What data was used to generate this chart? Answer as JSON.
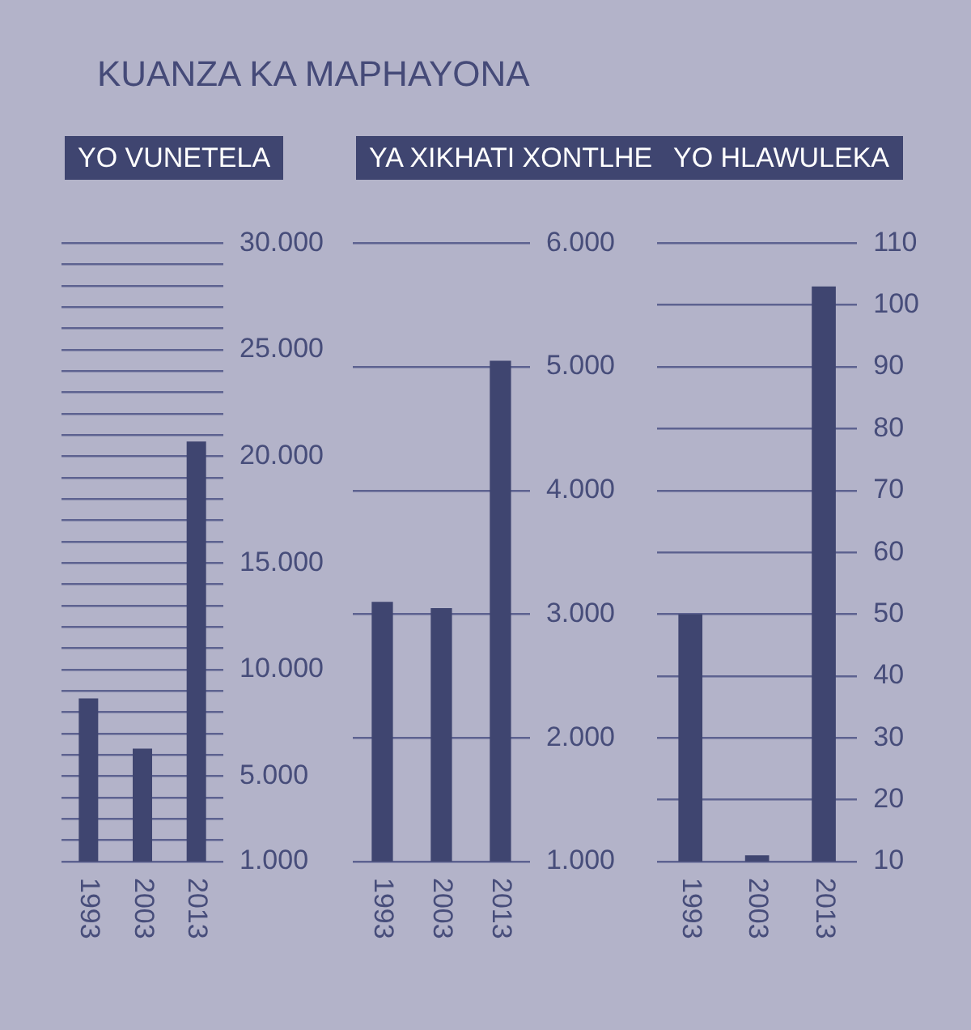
{
  "chart_data": [
    {
      "type": "other",
      "title": "KUANZA KA MAPHAYONA"
    },
    {
      "type": "bar",
      "title": "YO VUNETELA",
      "categories": [
        "1993",
        "2003",
        "2013"
      ],
      "values": [
        8650,
        6300,
        20700
      ],
      "color": "#3f4570",
      "ylim": [
        1000,
        30000
      ],
      "yticks": [
        {
          "value": 1000,
          "label": "1.000"
        },
        {
          "value": 2000,
          "label": null
        },
        {
          "value": 3000,
          "label": null
        },
        {
          "value": 4000,
          "label": null
        },
        {
          "value": 5000,
          "label": "5.000"
        },
        {
          "value": 6000,
          "label": null
        },
        {
          "value": 7000,
          "label": null
        },
        {
          "value": 8000,
          "label": null
        },
        {
          "value": 9000,
          "label": null
        },
        {
          "value": 10000,
          "label": "10.000"
        },
        {
          "value": 11000,
          "label": null
        },
        {
          "value": 12000,
          "label": null
        },
        {
          "value": 13000,
          "label": null
        },
        {
          "value": 14000,
          "label": null
        },
        {
          "value": 15000,
          "label": "15.000"
        },
        {
          "value": 16000,
          "label": null
        },
        {
          "value": 17000,
          "label": null
        },
        {
          "value": 18000,
          "label": null
        },
        {
          "value": 19000,
          "label": null
        },
        {
          "value": 20000,
          "label": "20.000"
        },
        {
          "value": 21000,
          "label": null
        },
        {
          "value": 22000,
          "label": null
        },
        {
          "value": 23000,
          "label": null
        },
        {
          "value": 24000,
          "label": null
        },
        {
          "value": 25000,
          "label": "25.000"
        },
        {
          "value": 26000,
          "label": null
        },
        {
          "value": 27000,
          "label": null
        },
        {
          "value": 28000,
          "label": null
        },
        {
          "value": 29000,
          "label": null
        },
        {
          "value": 30000,
          "label": "30.000"
        }
      ],
      "grid": true,
      "legend": false
    },
    {
      "type": "bar",
      "title": "YA XIKHATI XONTLHE",
      "categories": [
        "1993",
        "2003",
        "2013"
      ],
      "values": [
        3100,
        3050,
        5050
      ],
      "color": "#3f4570",
      "ylim": [
        1000,
        6000
      ],
      "yticks": [
        {
          "value": 1000,
          "label": "1.000"
        },
        {
          "value": 2000,
          "label": "2.000"
        },
        {
          "value": 3000,
          "label": "3.000"
        },
        {
          "value": 4000,
          "label": "4.000"
        },
        {
          "value": 5000,
          "label": "5.000"
        },
        {
          "value": 6000,
          "label": "6.000"
        }
      ],
      "grid": true,
      "legend": false
    },
    {
      "type": "bar",
      "title": "YO HLAWULEKA",
      "categories": [
        "1993",
        "2003",
        "2013"
      ],
      "values": [
        50,
        11,
        103
      ],
      "color": "#3f4570",
      "ylim": [
        10,
        110
      ],
      "yticks": [
        10,
        20,
        30,
        40,
        50,
        60,
        70,
        80,
        90,
        100,
        110
      ],
      "grid": true,
      "legend": false
    }
  ]
}
